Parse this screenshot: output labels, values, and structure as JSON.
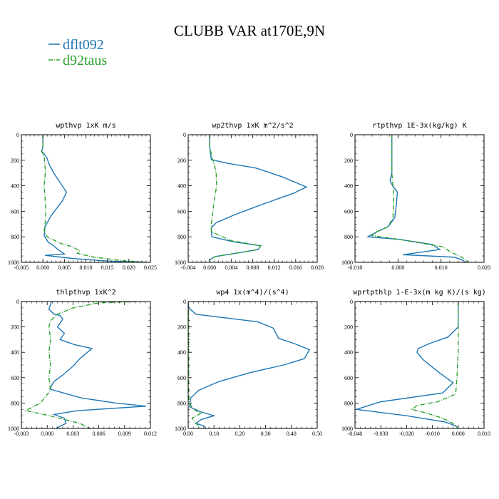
{
  "figure": {
    "title": "CLUBB VAR at170E,9N"
  },
  "legend": [
    {
      "name": "dflt092",
      "color": "#1f77b4",
      "dash": "solid"
    },
    {
      "name": "d92taus",
      "color": "#2ca02c",
      "dash": "dashdot"
    }
  ],
  "chart_data": [
    {
      "type": "line",
      "title": "wpthvp  1xK m/s",
      "xlim": [
        -0.005,
        0.025
      ],
      "ylim": [
        1000,
        0
      ],
      "xticks": [
        "-0.005",
        "0.000",
        "0.005",
        "0.010",
        "0.015",
        "0.020",
        "0.025"
      ],
      "yticks": [
        "0",
        "200",
        "400",
        "600",
        "800",
        "1000"
      ],
      "series": [
        {
          "name": "dflt092",
          "color": "#1f77b4",
          "dash": "solid",
          "x": [
            0,
            0,
            -0.0003,
            0.0005,
            0.001,
            0.0013,
            0.0025,
            0.0045,
            0.0055,
            0.0045,
            0.002,
            0.0005,
            0.0003,
            0.0012,
            0.0025,
            0.0035,
            0.005,
            0.0005,
            0.007,
            0.015,
            0.024
          ],
          "y": [
            0,
            100,
            130,
            160,
            185,
            220,
            300,
            400,
            450,
            520,
            630,
            720,
            790,
            840,
            870,
            900,
            935,
            945,
            970,
            990,
            1000
          ]
        },
        {
          "name": "d92taus",
          "color": "#2ca02c",
          "dash": "dashdot",
          "x": [
            0,
            0,
            -0.0003,
            0.0003,
            0.0004,
            0.0006,
            0.0003,
            0.0005,
            0.0007,
            0.0005,
            0.0003,
            0.001,
            0.004,
            0.007,
            0.0085,
            0.008,
            0.012,
            0.018,
            0.024
          ],
          "y": [
            0,
            100,
            130,
            170,
            220,
            280,
            400,
            500,
            600,
            700,
            750,
            800,
            850,
            880,
            910,
            930,
            960,
            985,
            1000
          ]
        }
      ]
    },
    {
      "type": "line",
      "title": "wp2thvp  1xK m^2/s^2",
      "xlim": [
        -0.004,
        0.02
      ],
      "ylim": [
        1000,
        0
      ],
      "xticks": [
        "-0.004",
        "0.000",
        "0.004",
        "0.008",
        "0.012",
        "0.016",
        "0.020"
      ],
      "yticks": [
        "0",
        "200",
        "400",
        "600",
        "800",
        "1000"
      ],
      "series": [
        {
          "name": "dflt092",
          "color": "#1f77b4",
          "dash": "solid",
          "x": [
            0,
            0,
            0.0003,
            0.0035,
            0.0085,
            0.0135,
            0.018,
            0.0155,
            0.0095,
            0.0045,
            0.0012,
            0.0003,
            0.0004,
            0.0045,
            0.0095,
            0.009,
            0.004,
            0.001,
            0,
            0
          ],
          "y": [
            0,
            100,
            195,
            225,
            260,
            330,
            410,
            460,
            550,
            630,
            690,
            730,
            800,
            840,
            870,
            900,
            935,
            955,
            980,
            1000
          ]
        },
        {
          "name": "d92taus",
          "color": "#2ca02c",
          "dash": "dashdot",
          "x": [
            0,
            0,
            0.0006,
            0.0009,
            0.0012,
            0.0013,
            0.0009,
            0.0006,
            0.0003,
            0.0003,
            0.004,
            0.0095,
            0.009,
            0.004,
            0.001,
            0,
            0
          ],
          "y": [
            0,
            100,
            200,
            240,
            300,
            400,
            500,
            600,
            700,
            760,
            830,
            870,
            900,
            935,
            955,
            980,
            1000
          ]
        }
      ]
    },
    {
      "type": "line",
      "title": "rtpthvp  1E-3x(kg/kg) K",
      "xlim": [
        -0.01,
        0.025
      ],
      "ylim": [
        1000,
        0
      ],
      "xticks": [
        "-0.010",
        "0.000",
        "0.010",
        "0.020"
      ],
      "yticks": [
        "0",
        "200",
        "400",
        "600",
        "800",
        "1000"
      ],
      "series": [
        {
          "name": "dflt092",
          "color": "#1f77b4",
          "dash": "solid",
          "x": [
            0,
            0,
            -0.0005,
            0.0002,
            0.0015,
            0.0012,
            0.0008,
            -0.001,
            -0.004,
            -0.0065,
            0.002,
            0.011,
            0.013,
            0.003,
            0.017,
            0.019,
            0.02
          ],
          "y": [
            0,
            300,
            360,
            400,
            450,
            550,
            650,
            720,
            760,
            800,
            820,
            860,
            900,
            940,
            960,
            980,
            1000
          ]
        },
        {
          "name": "d92taus",
          "color": "#2ca02c",
          "dash": "dashdot",
          "x": [
            0,
            0,
            0.0003,
            0.0005,
            0.0003,
            -0.001,
            -0.004,
            -0.0055,
            0.002,
            0.008,
            0.014,
            0.016,
            0.019,
            0.021
          ],
          "y": [
            0,
            300,
            400,
            500,
            650,
            720,
            760,
            790,
            820,
            850,
            880,
            920,
            960,
            1000
          ]
        }
      ]
    },
    {
      "type": "line",
      "title": "thlpthvp  1xK^2",
      "xlim": [
        -0.003,
        0.012
      ],
      "ylim": [
        1000,
        0
      ],
      "xticks": [
        "-0.003",
        "0.000",
        "0.003",
        "0.006",
        "0.009",
        "0.012"
      ],
      "yticks": [
        "0",
        "200",
        "400",
        "600",
        "800",
        "1000"
      ],
      "series": [
        {
          "name": "dflt092",
          "color": "#1f77b4",
          "dash": "solid",
          "x": [
            0.0005,
            0.0002,
            0.0008,
            0.0015,
            0.0018,
            0.0012,
            0.002,
            0.0015,
            0.0032,
            0.0052,
            0.0038,
            0.003,
            0.0018,
            0.0008,
            0.0003,
            0.004,
            0.008,
            0.0115,
            0.0035,
            0.0008,
            0.002,
            0.0022,
            0.001
          ],
          "y": [
            0,
            60,
            100,
            110,
            140,
            200,
            250,
            300,
            340,
            370,
            450,
            510,
            580,
            630,
            690,
            760,
            800,
            825,
            860,
            890,
            920,
            960,
            1000
          ]
        },
        {
          "name": "d92taus",
          "color": "#2ca02c",
          "dash": "dashdot",
          "x": [
            0.0105,
            0.006,
            0.003,
            0.0012,
            0.0004,
            0.0002,
            0.0004,
            0.0002,
            0.0004,
            0.0002,
            0.0004,
            -0.0008,
            -0.0025,
            0,
            0.002,
            0.0038,
            0.005
          ],
          "y": [
            0,
            10,
            50,
            100,
            150,
            200,
            300,
            400,
            500,
            600,
            700,
            800,
            860,
            895,
            930,
            960,
            1000
          ]
        }
      ]
    },
    {
      "type": "line",
      "title": "wp4  1x(m^4)/(s^4)",
      "xlim": [
        0.0,
        0.5
      ],
      "ylim": [
        1000,
        0
      ],
      "xticks": [
        "0.00",
        "0.10",
        "0.20",
        "0.30",
        "0.40",
        "0.50"
      ],
      "yticks": [
        "0",
        "200",
        "400",
        "600",
        "800",
        "1000"
      ],
      "series": [
        {
          "name": "dflt092",
          "color": "#1f77b4",
          "dash": "solid",
          "x": [
            0,
            0.002,
            0.03,
            0.15,
            0.27,
            0.33,
            0.35,
            0.41,
            0.47,
            0.45,
            0.37,
            0.24,
            0.12,
            0.04,
            0.01,
            0.005,
            0.05,
            0.1,
            0.05,
            0.03,
            0.06,
            0.07
          ],
          "y": [
            0,
            50,
            100,
            130,
            160,
            210,
            290,
            330,
            380,
            450,
            500,
            560,
            630,
            700,
            760,
            830,
            870,
            900,
            930,
            960,
            980,
            1000
          ]
        },
        {
          "name": "d92taus",
          "color": "#2ca02c",
          "dash": "dashdot",
          "x": [
            0,
            0.002,
            0.002,
            0.002,
            0.005,
            0.02,
            0.05,
            0.015,
            0.03,
            0.05
          ],
          "y": [
            0,
            200,
            500,
            750,
            800,
            850,
            880,
            920,
            960,
            1000
          ]
        }
      ]
    },
    {
      "type": "line",
      "title": "wprtpthlp  1-E-3x(m kg K)/(s kg)",
      "xlim": [
        -0.04,
        0.01
      ],
      "ylim": [
        1000,
        0
      ],
      "xticks": [
        "-0.040",
        "-0.030",
        "-0.020",
        "-0.010",
        "0.000",
        "0.010"
      ],
      "yticks": [
        "0",
        "200",
        "400",
        "600",
        "800",
        "1000"
      ],
      "series": [
        {
          "name": "dflt092",
          "color": "#1f77b4",
          "dash": "solid",
          "x": [
            0,
            0,
            -0.004,
            -0.011,
            -0.0155,
            -0.016,
            -0.0135,
            -0.008,
            -0.002,
            -0.006,
            -0.03,
            -0.0395,
            -0.02,
            -0.005,
            -0.001,
            0
          ],
          "y": [
            0,
            200,
            280,
            330,
            370,
            400,
            460,
            550,
            640,
            720,
            790,
            850,
            900,
            950,
            980,
            1000
          ]
        },
        {
          "name": "d92taus",
          "color": "#2ca02c",
          "dash": "dashdot",
          "x": [
            0,
            0,
            -0.0005,
            -0.001,
            -0.008,
            -0.016,
            -0.018,
            -0.012,
            -0.006,
            -0.002,
            0
          ],
          "y": [
            0,
            400,
            600,
            730,
            790,
            820,
            850,
            880,
            920,
            960,
            1000
          ]
        }
      ]
    }
  ]
}
